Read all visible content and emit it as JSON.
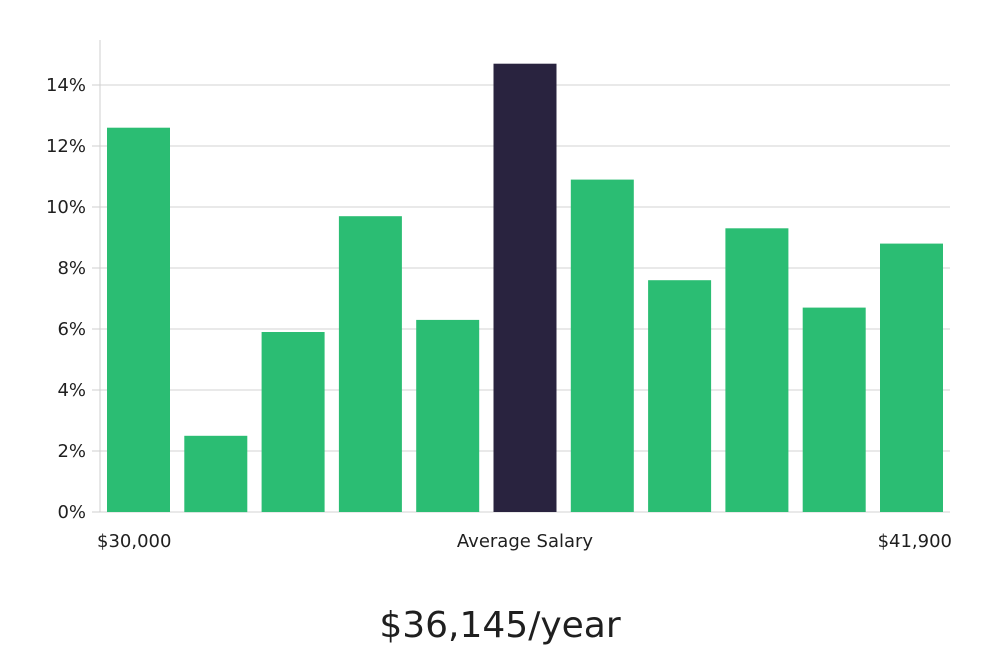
{
  "chart_data": {
    "type": "bar",
    "title": "",
    "xlabel": "Average Salary",
    "ylabel": "",
    "ylim": [
      0,
      15
    ],
    "yticks": [
      0,
      2,
      4,
      6,
      8,
      10,
      12,
      14
    ],
    "ytick_suffix": "%",
    "x_start_label": "$30,000",
    "x_end_label": "$41,900",
    "values": [
      12.6,
      2.5,
      5.9,
      9.7,
      6.3,
      14.7,
      10.9,
      7.6,
      9.3,
      6.7,
      8.8
    ],
    "highlight_index": 5,
    "colors": {
      "bar": "#2bbd73",
      "highlight": "#29233f",
      "grid": "#e2e2e2",
      "axis": "#cfcfcf"
    }
  },
  "average_salary_text": "$36,145/year"
}
